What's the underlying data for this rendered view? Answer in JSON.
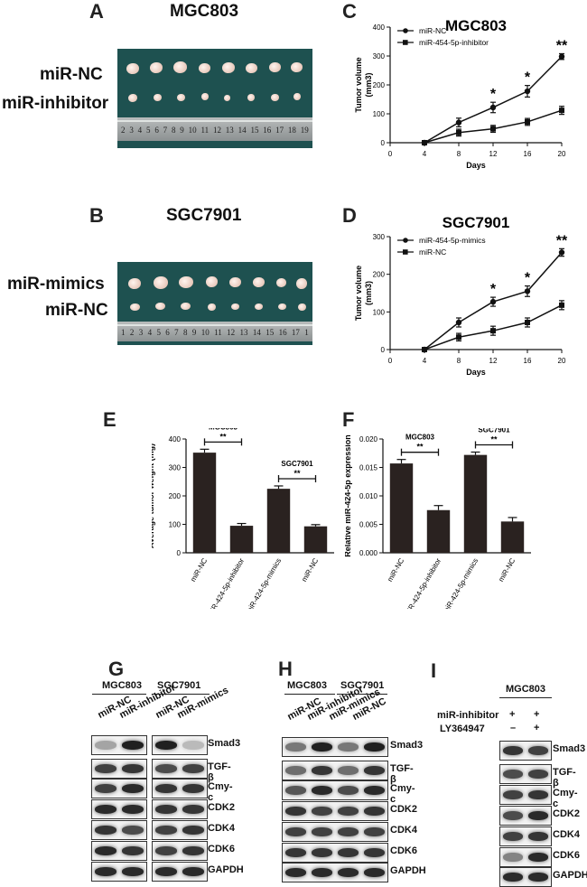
{
  "panels": {
    "A": {
      "letter": "A",
      "title": "MGC803",
      "rows": [
        "miR-NC",
        "miR-inhibitor"
      ],
      "ruler": [
        "2",
        "3",
        "4",
        "5",
        "6",
        "7",
        "8",
        "9",
        "10",
        "11",
        "12",
        "13",
        "14",
        "15",
        "16",
        "17",
        "18",
        "19"
      ]
    },
    "B": {
      "letter": "B",
      "title": "SGC7901",
      "rows": [
        "miR-mimics",
        "miR-NC"
      ],
      "ruler": [
        "1",
        "2",
        "3",
        "4",
        "5",
        "6",
        "7",
        "8",
        "9",
        "10",
        "11",
        "12",
        "13",
        "14",
        "15",
        "16",
        "17",
        "1"
      ]
    },
    "C": {
      "letter": "C"
    },
    "D": {
      "letter": "D"
    },
    "E": {
      "letter": "E"
    },
    "F": {
      "letter": "F"
    },
    "G": {
      "letter": "G",
      "groups": [
        "MGC803",
        "SGC7901"
      ],
      "lanes": [
        "miR-NC",
        "miR-inhibitor",
        "miR-NC",
        "miR-mimics"
      ],
      "proteins": [
        "Smad3",
        "TGF-β",
        "Cmy-c",
        "CDK2",
        "CDK4",
        "CDK6",
        "GAPDH"
      ]
    },
    "H": {
      "letter": "H",
      "groups": [
        "MGC803",
        "SGC7901"
      ],
      "lanes": [
        "miR-NC",
        "miR-inhibitor",
        "miR-mimics",
        "miR-NC"
      ],
      "proteins": [
        "Smad3",
        "TGF-β",
        "Cmy-c",
        "CDK2",
        "CDK4",
        "CDK6",
        "GAPDH"
      ]
    },
    "I": {
      "letter": "I",
      "group": "MGC803",
      "treatments": [
        {
          "name": "miR-inhibitor",
          "signs": [
            "+",
            "+"
          ]
        },
        {
          "name": "LY364947",
          "signs": [
            "–",
            "+"
          ]
        }
      ],
      "proteins": [
        "Smad3",
        "TGF-β",
        "Cmy-c",
        "CDK2",
        "CDK4",
        "CDK6",
        "GAPDH"
      ]
    }
  },
  "chart_data": [
    {
      "id": "C",
      "type": "line",
      "title": "MGC803",
      "xlabel": "Days",
      "ylabel": "Tumor volume (mm3)",
      "xlim": [
        0,
        20
      ],
      "ylim": [
        0,
        400
      ],
      "xticks": [
        0,
        4,
        8,
        12,
        16,
        20
      ],
      "yticks": [
        0,
        100,
        200,
        300,
        400
      ],
      "legend_position": "top-left",
      "grid": false,
      "series": [
        {
          "name": "miR-NC",
          "marker": "circle",
          "x": [
            4,
            8,
            12,
            16,
            20
          ],
          "y": [
            0,
            70,
            122,
            178,
            298
          ],
          "err": [
            0,
            15,
            18,
            20,
            10
          ]
        },
        {
          "name": "miR-454-5p-inhibitor",
          "marker": "square",
          "x": [
            4,
            8,
            12,
            16,
            20
          ],
          "y": [
            0,
            35,
            48,
            72,
            112
          ],
          "err": [
            0,
            12,
            12,
            12,
            14
          ]
        }
      ],
      "annotations": [
        {
          "x": 12,
          "text": "*"
        },
        {
          "x": 16,
          "text": "*"
        },
        {
          "x": 20,
          "text": "**"
        }
      ]
    },
    {
      "id": "D",
      "type": "line",
      "title": "SGC7901",
      "xlabel": "Days",
      "ylabel": "Tumor volume (mm3)",
      "xlim": [
        0,
        20
      ],
      "ylim": [
        0,
        300
      ],
      "xticks": [
        0,
        4,
        8,
        12,
        16,
        20
      ],
      "yticks": [
        0,
        100,
        200,
        300
      ],
      "legend_position": "top-left",
      "grid": false,
      "series": [
        {
          "name": "miR-454-5p-mimics",
          "marker": "circle",
          "x": [
            4,
            8,
            12,
            16,
            20
          ],
          "y": [
            0,
            72,
            127,
            155,
            258
          ],
          "err": [
            0,
            12,
            12,
            14,
            10
          ]
        },
        {
          "name": "miR-NC",
          "marker": "square",
          "x": [
            4,
            8,
            12,
            16,
            20
          ],
          "y": [
            0,
            33,
            50,
            72,
            118
          ],
          "err": [
            0,
            10,
            12,
            12,
            12
          ]
        }
      ],
      "annotations": [
        {
          "x": 12,
          "text": "*"
        },
        {
          "x": 16,
          "text": "*"
        },
        {
          "x": 20,
          "text": "**"
        }
      ]
    },
    {
      "id": "E",
      "type": "bar",
      "ylabel": "Average tumor weight (mg)",
      "ylim": [
        0,
        400
      ],
      "yticks": [
        0,
        100,
        200,
        300,
        400
      ],
      "categories": [
        "miR-NC",
        "miR-424-5p-inhibitor",
        "miR-424-5p-mimics",
        "miR-NC"
      ],
      "values": [
        352,
        95,
        225,
        93
      ],
      "errors": [
        12,
        8,
        10,
        6
      ],
      "brackets": [
        {
          "from": 0,
          "to": 1,
          "label": "MGC803",
          "sig": "**"
        },
        {
          "from": 2,
          "to": 3,
          "label": "SGC7901",
          "sig": "**"
        }
      ]
    },
    {
      "id": "F",
      "type": "bar",
      "ylabel": "Relative miR-424-5p expression",
      "ylim": [
        0,
        0.02
      ],
      "yticks": [
        "0.000",
        "0.005",
        "0.010",
        "0.015",
        "0.020"
      ],
      "categories": [
        "miR-NC",
        "miR-424-5p-inhibitor",
        "miR-424-5p-mimics",
        "miR-NC"
      ],
      "values": [
        0.0157,
        0.0075,
        0.0172,
        0.0055
      ],
      "errors": [
        0.0007,
        0.0008,
        0.0005,
        0.0007
      ],
      "brackets": [
        {
          "from": 0,
          "to": 1,
          "label": "MGC803",
          "sig": "**"
        },
        {
          "from": 2,
          "to": 3,
          "label": "SGC7901",
          "sig": "**"
        }
      ]
    }
  ],
  "colors": {
    "bar": "#2a2220",
    "photo_bg": "#1e5150",
    "line": "#111111"
  }
}
